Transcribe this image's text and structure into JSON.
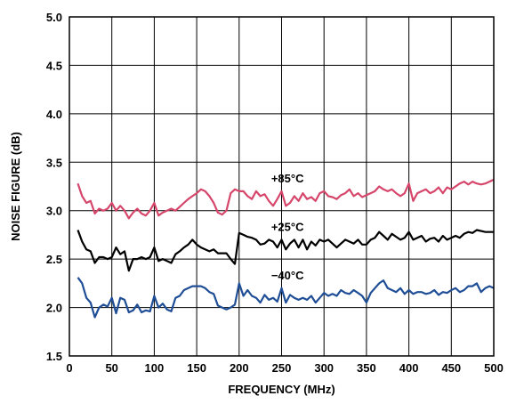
{
  "chart_data": {
    "type": "line",
    "xlabel": "FREQUENCY (MHz)",
    "ylabel": "NOISE FIGURE (dB)",
    "xlim": [
      0,
      500
    ],
    "ylim": [
      1.5,
      5.0
    ],
    "xticks": [
      0,
      50,
      100,
      150,
      200,
      250,
      300,
      350,
      400,
      450,
      500
    ],
    "yticks": [
      1.5,
      2.0,
      2.5,
      3.0,
      3.5,
      4.0,
      4.5,
      5.0
    ],
    "xtick_labels": [
      "0",
      "50",
      "100",
      "150",
      "200",
      "250",
      "300",
      "350",
      "400",
      "450",
      "500"
    ],
    "ytick_labels": [
      "1.5",
      "2.0",
      "2.5",
      "3.0",
      "3.5",
      "4.0",
      "4.5",
      "5.0"
    ],
    "grid": true,
    "series": [
      {
        "name": "+85°C",
        "color": "#d6456a",
        "x": [
          10,
          15,
          20,
          25,
          30,
          35,
          40,
          45,
          50,
          55,
          60,
          65,
          70,
          75,
          80,
          85,
          90,
          95,
          100,
          105,
          110,
          115,
          120,
          125,
          130,
          135,
          140,
          145,
          150,
          155,
          160,
          165,
          170,
          175,
          180,
          185,
          190,
          195,
          200,
          205,
          210,
          215,
          220,
          225,
          230,
          235,
          240,
          245,
          250,
          255,
          260,
          265,
          270,
          275,
          280,
          285,
          290,
          295,
          300,
          305,
          310,
          315,
          320,
          325,
          330,
          335,
          340,
          345,
          350,
          355,
          360,
          365,
          370,
          375,
          380,
          385,
          390,
          395,
          400,
          405,
          410,
          415,
          420,
          425,
          430,
          435,
          440,
          445,
          450,
          455,
          460,
          465,
          470,
          475,
          480,
          485,
          490,
          495,
          500
        ],
        "values": [
          3.28,
          3.15,
          3.08,
          3.1,
          2.97,
          3.02,
          3.0,
          3.02,
          3.08,
          3.0,
          3.05,
          3.0,
          2.92,
          2.98,
          3.02,
          2.97,
          2.95,
          3.0,
          3.08,
          2.95,
          2.98,
          3.0,
          3.02,
          3.0,
          3.04,
          3.08,
          3.12,
          3.15,
          3.18,
          3.22,
          3.2,
          3.15,
          3.08,
          2.98,
          2.96,
          3.0,
          3.18,
          3.22,
          3.2,
          3.2,
          3.15,
          3.12,
          3.2,
          3.15,
          3.17,
          3.1,
          3.05,
          3.12,
          3.2,
          3.05,
          3.08,
          3.15,
          3.1,
          3.18,
          3.12,
          3.14,
          3.1,
          3.18,
          3.2,
          3.15,
          3.14,
          3.12,
          3.16,
          3.18,
          3.22,
          3.15,
          3.18,
          3.14,
          3.16,
          3.18,
          3.2,
          3.25,
          3.22,
          3.2,
          3.22,
          3.18,
          3.15,
          3.18,
          3.28,
          3.1,
          3.18,
          3.2,
          3.22,
          3.18,
          3.2,
          3.24,
          3.18,
          3.24,
          3.22,
          3.25,
          3.28,
          3.3,
          3.27,
          3.3,
          3.28,
          3.27,
          3.28,
          3.3,
          3.32
        ]
      },
      {
        "name": "+25°C",
        "color": "#000000",
        "x": [
          10,
          15,
          20,
          25,
          30,
          35,
          40,
          45,
          50,
          55,
          60,
          65,
          70,
          75,
          80,
          85,
          90,
          95,
          100,
          105,
          110,
          115,
          120,
          125,
          130,
          135,
          140,
          145,
          150,
          155,
          160,
          165,
          170,
          175,
          180,
          185,
          190,
          195,
          200,
          205,
          210,
          215,
          220,
          225,
          230,
          235,
          240,
          245,
          250,
          255,
          260,
          265,
          270,
          275,
          280,
          285,
          290,
          295,
          300,
          305,
          310,
          315,
          320,
          325,
          330,
          335,
          340,
          345,
          350,
          355,
          360,
          365,
          370,
          375,
          380,
          385,
          390,
          395,
          400,
          405,
          410,
          415,
          420,
          425,
          430,
          435,
          440,
          445,
          450,
          455,
          460,
          465,
          470,
          475,
          480,
          485,
          490,
          495,
          500
        ],
        "values": [
          2.8,
          2.68,
          2.6,
          2.58,
          2.46,
          2.52,
          2.52,
          2.5,
          2.52,
          2.62,
          2.55,
          2.58,
          2.38,
          2.5,
          2.5,
          2.52,
          2.5,
          2.52,
          2.62,
          2.48,
          2.5,
          2.48,
          2.46,
          2.55,
          2.58,
          2.62,
          2.65,
          2.7,
          2.65,
          2.62,
          2.6,
          2.58,
          2.6,
          2.56,
          2.56,
          2.56,
          2.5,
          2.45,
          2.77,
          2.75,
          2.73,
          2.72,
          2.7,
          2.65,
          2.66,
          2.7,
          2.68,
          2.62,
          2.7,
          2.6,
          2.66,
          2.7,
          2.62,
          2.7,
          2.6,
          2.68,
          2.64,
          2.7,
          2.68,
          2.7,
          2.66,
          2.62,
          2.66,
          2.7,
          2.68,
          2.66,
          2.7,
          2.65,
          2.65,
          2.7,
          2.72,
          2.78,
          2.74,
          2.7,
          2.76,
          2.73,
          2.7,
          2.72,
          2.78,
          2.7,
          2.72,
          2.74,
          2.68,
          2.71,
          2.72,
          2.68,
          2.74,
          2.7,
          2.72,
          2.74,
          2.72,
          2.76,
          2.78,
          2.77,
          2.8,
          2.79,
          2.78,
          2.78,
          2.78
        ]
      },
      {
        "name": "−40°C",
        "color": "#1f4e96",
        "x": [
          10,
          15,
          20,
          25,
          30,
          35,
          40,
          45,
          50,
          55,
          60,
          65,
          70,
          75,
          80,
          85,
          90,
          95,
          100,
          105,
          110,
          115,
          120,
          125,
          130,
          135,
          140,
          145,
          150,
          155,
          160,
          165,
          170,
          175,
          180,
          185,
          190,
          195,
          200,
          205,
          210,
          215,
          220,
          225,
          230,
          235,
          240,
          245,
          250,
          255,
          260,
          265,
          270,
          275,
          280,
          285,
          290,
          295,
          300,
          305,
          310,
          315,
          320,
          325,
          330,
          335,
          340,
          345,
          350,
          355,
          360,
          365,
          370,
          375,
          380,
          385,
          390,
          395,
          400,
          405,
          410,
          415,
          420,
          425,
          430,
          435,
          440,
          445,
          450,
          455,
          460,
          465,
          470,
          475,
          480,
          485,
          490,
          495,
          500
        ],
        "values": [
          2.31,
          2.25,
          2.1,
          2.05,
          1.9,
          2.0,
          2.03,
          2.01,
          2.1,
          1.94,
          2.1,
          2.08,
          1.95,
          1.97,
          2.03,
          1.95,
          1.97,
          1.96,
          2.12,
          2.0,
          2.04,
          1.98,
          1.96,
          2.1,
          2.12,
          2.18,
          2.2,
          2.22,
          2.22,
          2.22,
          2.2,
          2.16,
          2.14,
          2.02,
          2.0,
          1.98,
          2.0,
          2.03,
          2.25,
          2.12,
          2.18,
          2.12,
          2.1,
          2.05,
          2.13,
          2.08,
          2.1,
          2.06,
          2.2,
          2.05,
          2.13,
          2.1,
          2.08,
          2.1,
          2.08,
          2.12,
          2.05,
          2.1,
          2.15,
          2.12,
          2.14,
          2.12,
          2.18,
          2.15,
          2.14,
          2.18,
          2.15,
          2.12,
          2.05,
          2.15,
          2.2,
          2.25,
          2.28,
          2.2,
          2.18,
          2.16,
          2.2,
          2.14,
          2.18,
          2.14,
          2.16,
          2.16,
          2.14,
          2.15,
          2.18,
          2.13,
          2.16,
          2.15,
          2.18,
          2.2,
          2.16,
          2.18,
          2.22,
          2.22,
          2.25,
          2.16,
          2.2,
          2.22,
          2.2
        ]
      }
    ]
  }
}
